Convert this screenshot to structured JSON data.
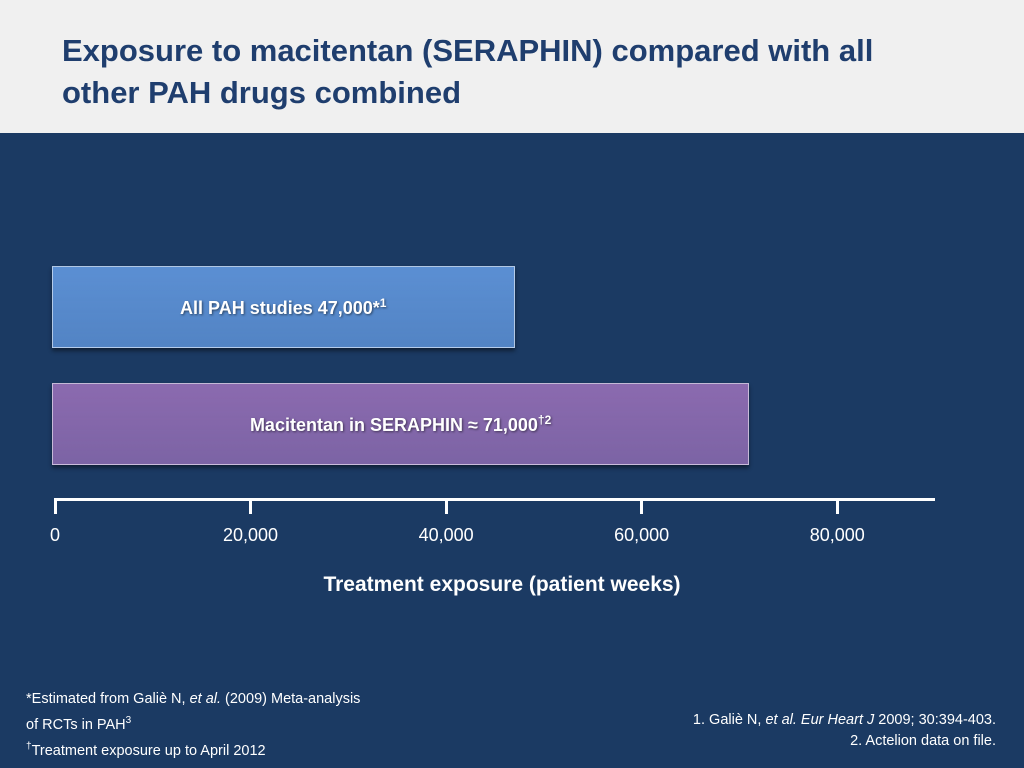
{
  "slide": {
    "title_line1": "Exposure to macitentan (SERAPHIN) compared with all",
    "title_line2": "other PAH drugs combined"
  },
  "chart_data": {
    "type": "bar",
    "orientation": "horizontal",
    "categories": [
      "All PAH studies",
      "Macitentan in SERAPHIN"
    ],
    "values": [
      47000,
      71000
    ],
    "bar_labels": [
      {
        "text": "All PAH studies 47,000*",
        "sup": "1"
      },
      {
        "text": "Macitentan in SERAPHIN ≈ 71,000",
        "sup": "†2"
      }
    ],
    "colors": [
      "#5b8fd3",
      "#8b6aaf"
    ],
    "xlabel": "Treatment exposure (patient weeks)",
    "xticks": [
      0,
      20000,
      40000,
      60000,
      80000
    ],
    "xtick_labels": [
      "0",
      "20,000",
      "40,000",
      "60,000",
      "80,000"
    ],
    "xlim": [
      0,
      90000
    ],
    "grid": false
  },
  "footnotes": {
    "line1_pre": "*Estimated from Galiè N, ",
    "line1_em": "et al.",
    "line1_post": " (2009) Meta-analysis",
    "line2": "of RCTs in PAH",
    "line2_sup": "3",
    "line3_sup": "†",
    "line3": "Treatment exposure up to April 2012"
  },
  "references": {
    "ref1_pre": "1. Galiè N, ",
    "ref1_em": "et al. Eur Heart J",
    "ref1_post": " 2009; 30:394-403.",
    "ref2": "2. Actelion data on file."
  }
}
